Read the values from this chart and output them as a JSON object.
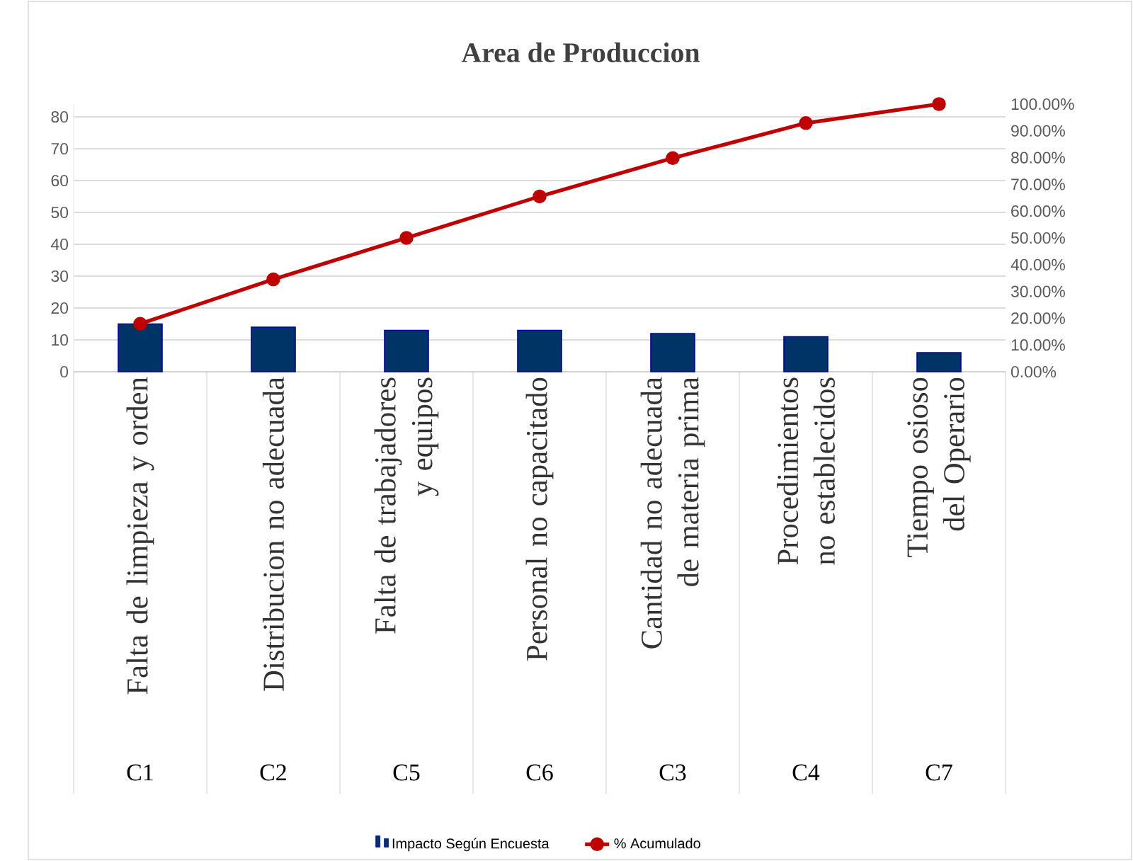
{
  "chart_data": {
    "type": "bar",
    "title": "Area de Produccion",
    "categories": [
      "Falta de limpieza y orden",
      "Distribucion no adecuada",
      "Falta de trabajadores y equipos",
      "Personal no capacitado",
      "Cantidad no adecuada de materia prima",
      "Procedimientos no establecidos",
      "Tiempo osioso del Operario"
    ],
    "annotations": [
      "C1",
      "C2",
      "C5",
      "C6",
      "C3",
      "C4",
      "C7"
    ],
    "series": [
      {
        "name": "Impacto Según Encuesta",
        "color": "#003366",
        "values": [
          15,
          14,
          13,
          13,
          12,
          11,
          6
        ]
      },
      {
        "name": "% Acumulado",
        "type": "line",
        "axis": "y2",
        "marker": "circle",
        "color": "#c00000",
        "values": [
          17.9,
          34.5,
          50,
          65.5,
          79.8,
          92.9,
          100
        ]
      }
    ],
    "ylim": [
      0,
      84
    ],
    "yticks": [
      0,
      10,
      20,
      30,
      40,
      50,
      60,
      70,
      80
    ],
    "y2lim": [
      0,
      100
    ],
    "y2ticks": [
      {
        "value": 0,
        "label": "0.00%"
      },
      {
        "value": 10,
        "label": "10.00%"
      },
      {
        "value": 20,
        "label": "20.00%"
      },
      {
        "value": 30,
        "label": "30.00%"
      },
      {
        "value": 40,
        "label": "40.00%"
      },
      {
        "value": 50,
        "label": "50.00%"
      },
      {
        "value": 60,
        "label": "60.00%"
      },
      {
        "value": 70,
        "label": "70.00%"
      },
      {
        "value": 80,
        "label": "80.00%"
      },
      {
        "value": 90,
        "label": "90.00%"
      },
      {
        "value": 100,
        "label": "100.00%"
      }
    ],
    "grid": "y",
    "legend": "bottom"
  }
}
